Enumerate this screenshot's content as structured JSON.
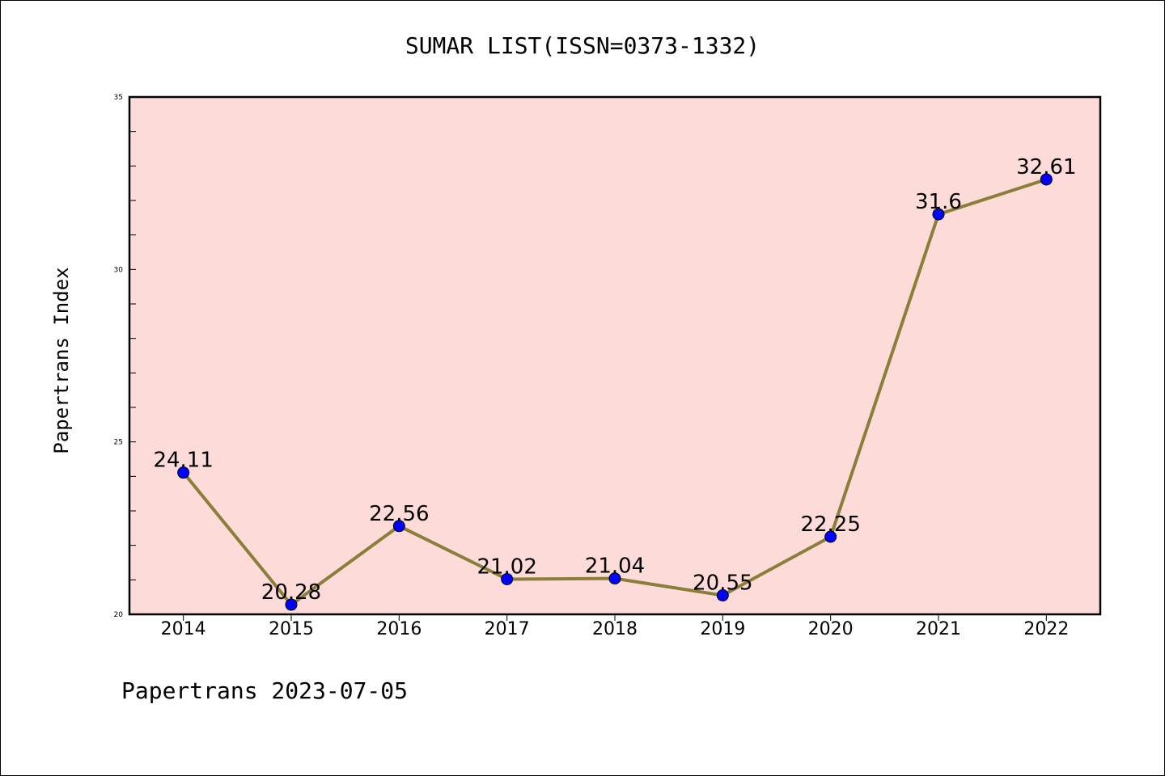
{
  "chart_data": {
    "type": "line",
    "title": "SUMAR LIST(ISSN=0373-1332)",
    "xlabel": "",
    "ylabel": "Papertrans Index",
    "categories": [
      "2014",
      "2015",
      "2016",
      "2017",
      "2018",
      "2019",
      "2020",
      "2021",
      "2022"
    ],
    "values": [
      24.11,
      20.28,
      22.56,
      21.02,
      21.04,
      20.55,
      22.25,
      31.6,
      32.61
    ],
    "data_labels": [
      "24.11",
      "20.28",
      "22.56",
      "21.02",
      "21.04",
      "20.55",
      "22.25",
      "31.6",
      "32.61"
    ],
    "ylim": [
      20,
      35
    ],
    "yticks": [
      20,
      25,
      30,
      35
    ],
    "grid": false,
    "footer": "Papertrans 2023-07-05",
    "colors": {
      "plot_background": "#fddbd8",
      "line": "#8b7d3a",
      "marker": "#0000ff",
      "axis": "#000000"
    }
  }
}
